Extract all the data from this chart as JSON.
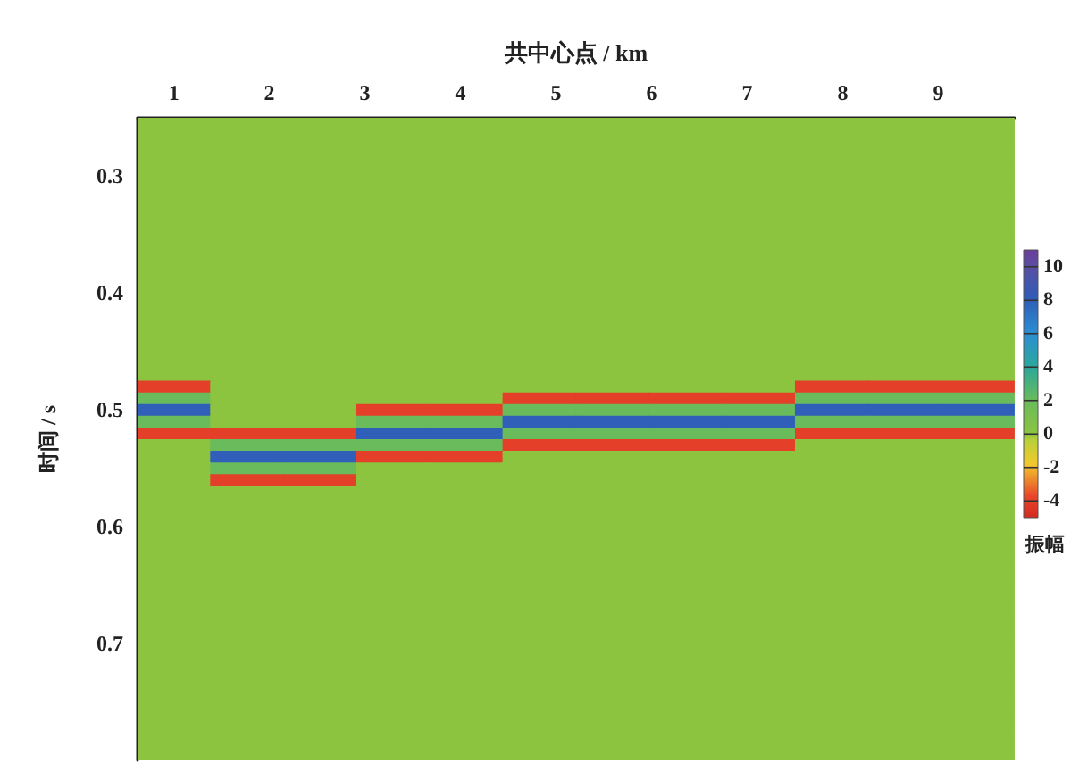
{
  "chart_data": {
    "type": "heatmap",
    "xlabel": "共中心点 / km",
    "ylabel": "时间 / s",
    "clabel": "振幅",
    "x": [
      1.0,
      1.76,
      2.53,
      3.29,
      4.06,
      4.82,
      5.59,
      6.35,
      7.12,
      7.88,
      8.65,
      9.41
    ],
    "y": [
      0.25,
      0.26,
      0.27,
      0.28,
      0.29,
      0.3,
      0.31,
      0.32,
      0.33,
      0.34,
      0.35,
      0.36,
      0.37,
      0.38,
      0.39,
      0.4,
      0.41,
      0.42,
      0.43,
      0.44,
      0.45,
      0.46,
      0.47,
      0.48,
      0.49,
      0.5,
      0.51,
      0.52,
      0.53,
      0.54,
      0.55,
      0.56,
      0.57,
      0.58,
      0.59,
      0.6,
      0.61,
      0.62,
      0.63,
      0.64,
      0.65,
      0.66,
      0.67,
      0.68,
      0.69,
      0.7,
      0.71,
      0.72,
      0.73,
      0.74,
      0.75,
      0.76,
      0.77,
      0.78,
      0.79,
      0.8
    ],
    "cells": [
      [
        0,
        0,
        0,
        0,
        0,
        0,
        0,
        0,
        0,
        0,
        0,
        0
      ],
      [
        0,
        0,
        0,
        0,
        0,
        0,
        0,
        0,
        0,
        0,
        0,
        0
      ],
      [
        0,
        0,
        0,
        0,
        0,
        0,
        0,
        0,
        0,
        0,
        0,
        0
      ],
      [
        0,
        0,
        0,
        0,
        0,
        0,
        0,
        0,
        0,
        0,
        0,
        0
      ],
      [
        0,
        0,
        0,
        0,
        0,
        0,
        0,
        0,
        0,
        0,
        0,
        0
      ],
      [
        0,
        0,
        0,
        0,
        0,
        0,
        0,
        0,
        0,
        0,
        0,
        0
      ],
      [
        0,
        0,
        0,
        0,
        0,
        0,
        0,
        0,
        0,
        0,
        0,
        0
      ],
      [
        0,
        0,
        0,
        0,
        0,
        0,
        0,
        0,
        0,
        0,
        0,
        0
      ],
      [
        0,
        0,
        0,
        0,
        0,
        0,
        0,
        0,
        0,
        0,
        0,
        0
      ],
      [
        0,
        0,
        0,
        0,
        0,
        0,
        0,
        0,
        0,
        0,
        0,
        0
      ],
      [
        0,
        0,
        0,
        0,
        0,
        0,
        0,
        0,
        0,
        0,
        0,
        0
      ],
      [
        0,
        0,
        0,
        0,
        0,
        0,
        0,
        0,
        0,
        0,
        0,
        0
      ],
      [
        0,
        0,
        0,
        0,
        0,
        0,
        0,
        0,
        0,
        0,
        0,
        0
      ],
      [
        0,
        0,
        0,
        0,
        0,
        0,
        0,
        0,
        0,
        0,
        0,
        0
      ],
      [
        0,
        0,
        0,
        0,
        0,
        0,
        0,
        0,
        0,
        0,
        0,
        0
      ],
      [
        0,
        0,
        0,
        0,
        0,
        0,
        0,
        0,
        0,
        0,
        0,
        0
      ],
      [
        0,
        0,
        0,
        0,
        0,
        0,
        0,
        0,
        0,
        0,
        0,
        0
      ],
      [
        0,
        0,
        0,
        0,
        0,
        0,
        0,
        0,
        0,
        0,
        0,
        0
      ],
      [
        0,
        0,
        0,
        0,
        0,
        0,
        0,
        0,
        0,
        0,
        0,
        0
      ],
      [
        0,
        0,
        0,
        0,
        0,
        0,
        0,
        0,
        0,
        0,
        0,
        0
      ],
      [
        0,
        0,
        0,
        0,
        0,
        0,
        0,
        0,
        0,
        0,
        0,
        0
      ],
      [
        0,
        0,
        0,
        0,
        0,
        0,
        0,
        0,
        0,
        0,
        0,
        0
      ],
      [
        0,
        0,
        0,
        0,
        0,
        0,
        0,
        0,
        0,
        0,
        0,
        0
      ],
      [
        -4,
        0,
        0,
        0,
        0,
        0,
        0,
        0,
        0,
        -4,
        -4,
        -4
      ],
      [
        2,
        0,
        0,
        0,
        0,
        -4,
        -4,
        -4,
        -4,
        2,
        2,
        2
      ],
      [
        8,
        0,
        0,
        -4,
        -4,
        2,
        2,
        2,
        2,
        8,
        8,
        8
      ],
      [
        2,
        0,
        0,
        2,
        2,
        8,
        8,
        8,
        8,
        2,
        2,
        2
      ],
      [
        -4,
        -4,
        -4,
        8,
        8,
        2,
        2,
        2,
        2,
        -4,
        -4,
        -4
      ],
      [
        0,
        2,
        2,
        2,
        2,
        -4,
        -4,
        -4,
        -4,
        0,
        0,
        0
      ],
      [
        0,
        8,
        8,
        -4,
        -4,
        0,
        0,
        0,
        0,
        0,
        0,
        0
      ],
      [
        0,
        2,
        2,
        0,
        0,
        0,
        0,
        0,
        0,
        0,
        0,
        0
      ],
      [
        0,
        -4,
        -4,
        0,
        0,
        0,
        0,
        0,
        0,
        0,
        0,
        0
      ],
      [
        0,
        0,
        0,
        0,
        0,
        0,
        0,
        0,
        0,
        0,
        0,
        0
      ],
      [
        0,
        0,
        0,
        0,
        0,
        0,
        0,
        0,
        0,
        0,
        0,
        0
      ],
      [
        0,
        0,
        0,
        0,
        0,
        0,
        0,
        0,
        0,
        0,
        0,
        0
      ],
      [
        0,
        0,
        0,
        0,
        0,
        0,
        0,
        0,
        0,
        0,
        0,
        0
      ],
      [
        0,
        0,
        0,
        0,
        0,
        0,
        0,
        0,
        0,
        0,
        0,
        0
      ],
      [
        0,
        0,
        0,
        0,
        0,
        0,
        0,
        0,
        0,
        0,
        0,
        0
      ],
      [
        0,
        0,
        0,
        0,
        0,
        0,
        0,
        0,
        0,
        0,
        0,
        0
      ],
      [
        0,
        0,
        0,
        0,
        0,
        0,
        0,
        0,
        0,
        0,
        0,
        0
      ],
      [
        0,
        0,
        0,
        0,
        0,
        0,
        0,
        0,
        0,
        0,
        0,
        0
      ],
      [
        0,
        0,
        0,
        0,
        0,
        0,
        0,
        0,
        0,
        0,
        0,
        0
      ],
      [
        0,
        0,
        0,
        0,
        0,
        0,
        0,
        0,
        0,
        0,
        0,
        0
      ],
      [
        0,
        0,
        0,
        0,
        0,
        0,
        0,
        0,
        0,
        0,
        0,
        0
      ],
      [
        0,
        0,
        0,
        0,
        0,
        0,
        0,
        0,
        0,
        0,
        0,
        0
      ],
      [
        0,
        0,
        0,
        0,
        0,
        0,
        0,
        0,
        0,
        0,
        0,
        0
      ],
      [
        0,
        0,
        0,
        0,
        0,
        0,
        0,
        0,
        0,
        0,
        0,
        0
      ],
      [
        0,
        0,
        0,
        0,
        0,
        0,
        0,
        0,
        0,
        0,
        0,
        0
      ],
      [
        0,
        0,
        0,
        0,
        0,
        0,
        0,
        0,
        0,
        0,
        0,
        0
      ],
      [
        0,
        0,
        0,
        0,
        0,
        0,
        0,
        0,
        0,
        0,
        0,
        0
      ],
      [
        0,
        0,
        0,
        0,
        0,
        0,
        0,
        0,
        0,
        0,
        0,
        0
      ],
      [
        0,
        0,
        0,
        0,
        0,
        0,
        0,
        0,
        0,
        0,
        0,
        0
      ],
      [
        0,
        0,
        0,
        0,
        0,
        0,
        0,
        0,
        0,
        0,
        0,
        0
      ],
      [
        0,
        0,
        0,
        0,
        0,
        0,
        0,
        0,
        0,
        0,
        0,
        0
      ],
      [
        0,
        0,
        0,
        0,
        0,
        0,
        0,
        0,
        0,
        0,
        0,
        0
      ],
      [
        0,
        0,
        0,
        0,
        0,
        0,
        0,
        0,
        0,
        0,
        0,
        0
      ]
    ],
    "xlim": [
      0.62,
      9.8
    ],
    "xticks": [
      1,
      2,
      3,
      4,
      5,
      6,
      7,
      8,
      9
    ],
    "ylim": [
      0.8,
      0.25
    ],
    "yticks": [
      0.3,
      0.4,
      0.5,
      0.6,
      0.7
    ],
    "clim": [
      -5,
      11
    ],
    "cticks": [
      10,
      8,
      6,
      4,
      2,
      0,
      -2,
      -4
    ]
  }
}
